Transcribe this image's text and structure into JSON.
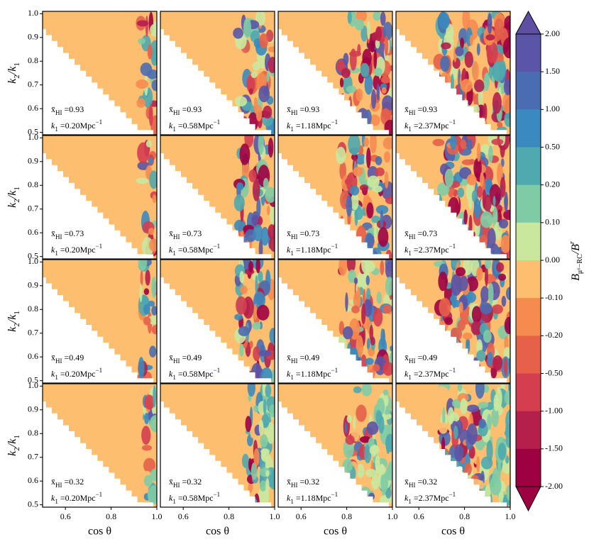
{
  "chart_data": {
    "type": "contour",
    "xlabel": "cos θ",
    "ylabel": {
      "k": "k",
      "sub2": "2",
      "slash": "/k",
      "sub1": "1"
    },
    "xlim": [
      0.5,
      1.0
    ],
    "xticks": [
      0.6,
      0.8,
      {
        "value": 1.0,
        "label": "1.0"
      }
    ],
    "ylim": [
      0.49,
      1.01
    ],
    "yticks": [
      0.5,
      0.6,
      0.7,
      0.8,
      0.9,
      {
        "value": 1.0,
        "label": "1.0"
      }
    ],
    "x_hi": [
      0.93,
      0.73,
      0.49,
      0.32
    ],
    "k1": [
      {
        "value": 0.2,
        "label": "0.20"
      },
      0.58,
      1.18,
      2.37
    ],
    "annotation": {
      "x": "x̄",
      "x_sub": "HI",
      "eq": " =",
      "k": "k",
      "k_sub": "1",
      "unit": "Mpc",
      "unit_exp": "−1"
    },
    "colorbar": {
      "label": {
        "b": "B",
        "sub": "μ⁶−RC",
        "sep": "/B",
        "sup": "r"
      },
      "levels": [
        {
          "value": 2,
          "label": "2.00"
        },
        {
          "value": 1.5,
          "label": "1.50"
        },
        {
          "value": 1,
          "label": "1.00"
        },
        {
          "value": 0.5,
          "label": "0.50"
        },
        {
          "value": 0.2,
          "label": "0.20"
        },
        {
          "value": 0.1,
          "label": "0.10"
        },
        {
          "value": 0,
          "label": "0.00"
        },
        {
          "value": -0.1,
          "label": "-0.10"
        },
        {
          "value": -0.2,
          "label": "-0.20"
        },
        {
          "value": -0.5,
          "label": "-0.50"
        },
        {
          "value": -1,
          "label": "-1.00"
        },
        {
          "value": -1.5,
          "label": "-1.50"
        },
        {
          "value": -2,
          "label": "-2.00"
        }
      ],
      "colors": [
        "#5a55a6",
        "#4a6db1",
        "#3a89bf",
        "#4fa9ae",
        "#7fcba5",
        "#c9e89e",
        "#fdbf6f",
        "#f68b4f",
        "#e6604a",
        "#d43e4f",
        "#b51f4b",
        "#9e0142"
      ],
      "extend_colors": [
        "#5e4fa2",
        "#9e0142"
      ]
    }
  }
}
